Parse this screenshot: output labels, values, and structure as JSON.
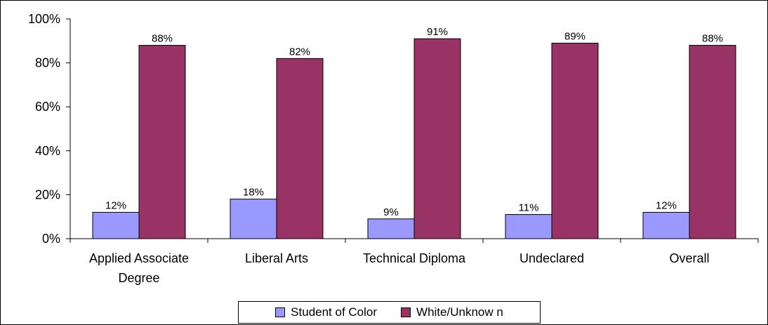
{
  "chart_data": {
    "type": "bar",
    "categories": [
      "Applied Associate Degree",
      "Liberal Arts",
      "Technical Diploma",
      "Undeclared",
      "Overall"
    ],
    "category_label_lines": [
      [
        "Applied Associate",
        "Degree"
      ],
      [
        "Liberal Arts"
      ],
      [
        "Technical Diploma"
      ],
      [
        "Undeclared"
      ],
      [
        "Overall"
      ]
    ],
    "series": [
      {
        "name": "Student of Color",
        "values": [
          12,
          18,
          9,
          11,
          12
        ],
        "labels": [
          "12%",
          "18%",
          "9%",
          "11%",
          "12%"
        ],
        "color": "#9999FF"
      },
      {
        "name": "White/Unknow n",
        "values": [
          88,
          82,
          91,
          89,
          88
        ],
        "labels": [
          "88%",
          "82%",
          "91%",
          "89%",
          "88%"
        ],
        "color": "#993366"
      }
    ],
    "ylim": [
      0,
      100
    ],
    "yticks": [
      "0%",
      "20%",
      "40%",
      "60%",
      "80%",
      "100%"
    ],
    "grid": false,
    "legend_position": "bottom"
  }
}
